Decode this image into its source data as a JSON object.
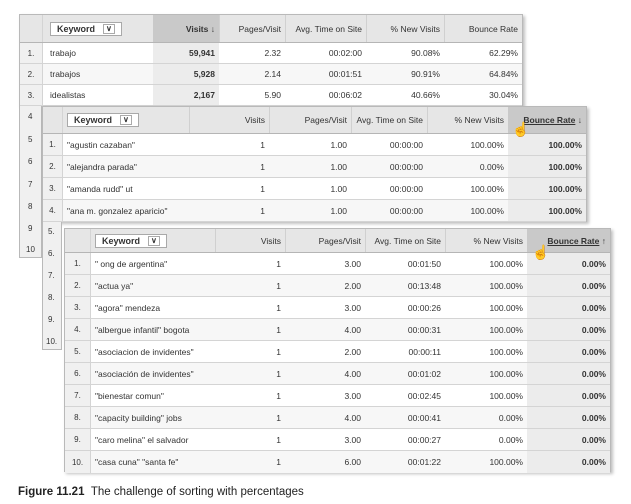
{
  "t1": {
    "headers": {
      "keyword": "Keyword",
      "visits": "Visits",
      "pages": "Pages/Visit",
      "avg": "Avg. Time on Site",
      "newv": "% New Visits",
      "bounce": "Bounce Rate"
    },
    "rows": [
      {
        "i": "1.",
        "k": "trabajo",
        "v": "59,941",
        "p": "2.32",
        "a": "00:02:00",
        "n": "90.08%",
        "b": "62.29%"
      },
      {
        "i": "2.",
        "k": "trabajos",
        "v": "5,928",
        "p": "2.14",
        "a": "00:01:51",
        "n": "90.91%",
        "b": "64.84%"
      },
      {
        "i": "3.",
        "k": "idealistas",
        "v": "2,167",
        "p": "5.90",
        "a": "00:06:02",
        "n": "40.66%",
        "b": "30.04%"
      }
    ],
    "peek": [
      "4",
      "5",
      "6",
      "7",
      "8",
      "9",
      "10"
    ]
  },
  "t2": {
    "headers": {
      "keyword": "Keyword",
      "visits": "Visits",
      "pages": "Pages/Visit",
      "avg": "Avg. Time on Site",
      "newv": "% New Visits",
      "bounce": "Bounce Rate"
    },
    "rows": [
      {
        "i": "1.",
        "k": "\"agustin cazaban\"",
        "v": "1",
        "p": "1.00",
        "a": "00:00:00",
        "n": "100.00%",
        "b": "100.00%"
      },
      {
        "i": "2.",
        "k": "\"alejandra parada\"",
        "v": "1",
        "p": "1.00",
        "a": "00:00:00",
        "n": "0.00%",
        "b": "100.00%"
      },
      {
        "i": "3.",
        "k": "\"amanda rudd\" ut",
        "v": "1",
        "p": "1.00",
        "a": "00:00:00",
        "n": "100.00%",
        "b": "100.00%"
      },
      {
        "i": "4.",
        "k": "\"ana m. gonzalez aparicio\"",
        "v": "1",
        "p": "1.00",
        "a": "00:00:00",
        "n": "100.00%",
        "b": "100.00%"
      }
    ],
    "peek": [
      "5.",
      "6.",
      "7.",
      "8.",
      "9.",
      "10."
    ]
  },
  "t3": {
    "headers": {
      "keyword": "Keyword",
      "visits": "Visits",
      "pages": "Pages/Visit",
      "avg": "Avg. Time on Site",
      "newv": "% New Visits",
      "bounce": "Bounce Rate"
    },
    "rows": [
      {
        "i": "1.",
        "k": "\" ong de argentina\"",
        "v": "1",
        "p": "3.00",
        "a": "00:01:50",
        "n": "100.00%",
        "b": "0.00%"
      },
      {
        "i": "2.",
        "k": "\"actua ya\"",
        "v": "1",
        "p": "2.00",
        "a": "00:13:48",
        "n": "100.00%",
        "b": "0.00%"
      },
      {
        "i": "3.",
        "k": "\"agora\" mendeza",
        "v": "1",
        "p": "3.00",
        "a": "00:00:26",
        "n": "100.00%",
        "b": "0.00%"
      },
      {
        "i": "4.",
        "k": "\"albergue infantil\" bogota",
        "v": "1",
        "p": "4.00",
        "a": "00:00:31",
        "n": "100.00%",
        "b": "0.00%"
      },
      {
        "i": "5.",
        "k": "\"asociacion de invidentes\"",
        "v": "1",
        "p": "2.00",
        "a": "00:00:11",
        "n": "100.00%",
        "b": "0.00%"
      },
      {
        "i": "6.",
        "k": "\"asociación de invidentes\"",
        "v": "1",
        "p": "4.00",
        "a": "00:01:02",
        "n": "100.00%",
        "b": "0.00%"
      },
      {
        "i": "7.",
        "k": "\"bienestar comun\"",
        "v": "1",
        "p": "3.00",
        "a": "00:02:45",
        "n": "100.00%",
        "b": "0.00%"
      },
      {
        "i": "8.",
        "k": "\"capacity building\" jobs",
        "v": "1",
        "p": "4.00",
        "a": "00:00:41",
        "n": "0.00%",
        "b": "0.00%"
      },
      {
        "i": "9.",
        "k": "\"caro melina\" el salvador",
        "v": "1",
        "p": "3.00",
        "a": "00:00:27",
        "n": "0.00%",
        "b": "0.00%"
      },
      {
        "i": "10.",
        "k": "\"casa cuna\" \"santa fe\"",
        "v": "1",
        "p": "6.00",
        "a": "00:01:22",
        "n": "100.00%",
        "b": "0.00%"
      }
    ]
  },
  "caption": {
    "label": "Figure 11.21",
    "text": "The challenge of sorting with percentages"
  },
  "icons": {
    "sort_down": "arrow-down-icon",
    "sort_up": "arrow-up-icon",
    "cursor": "hand-pointer-icon",
    "menu": "chevron-down-icon"
  }
}
